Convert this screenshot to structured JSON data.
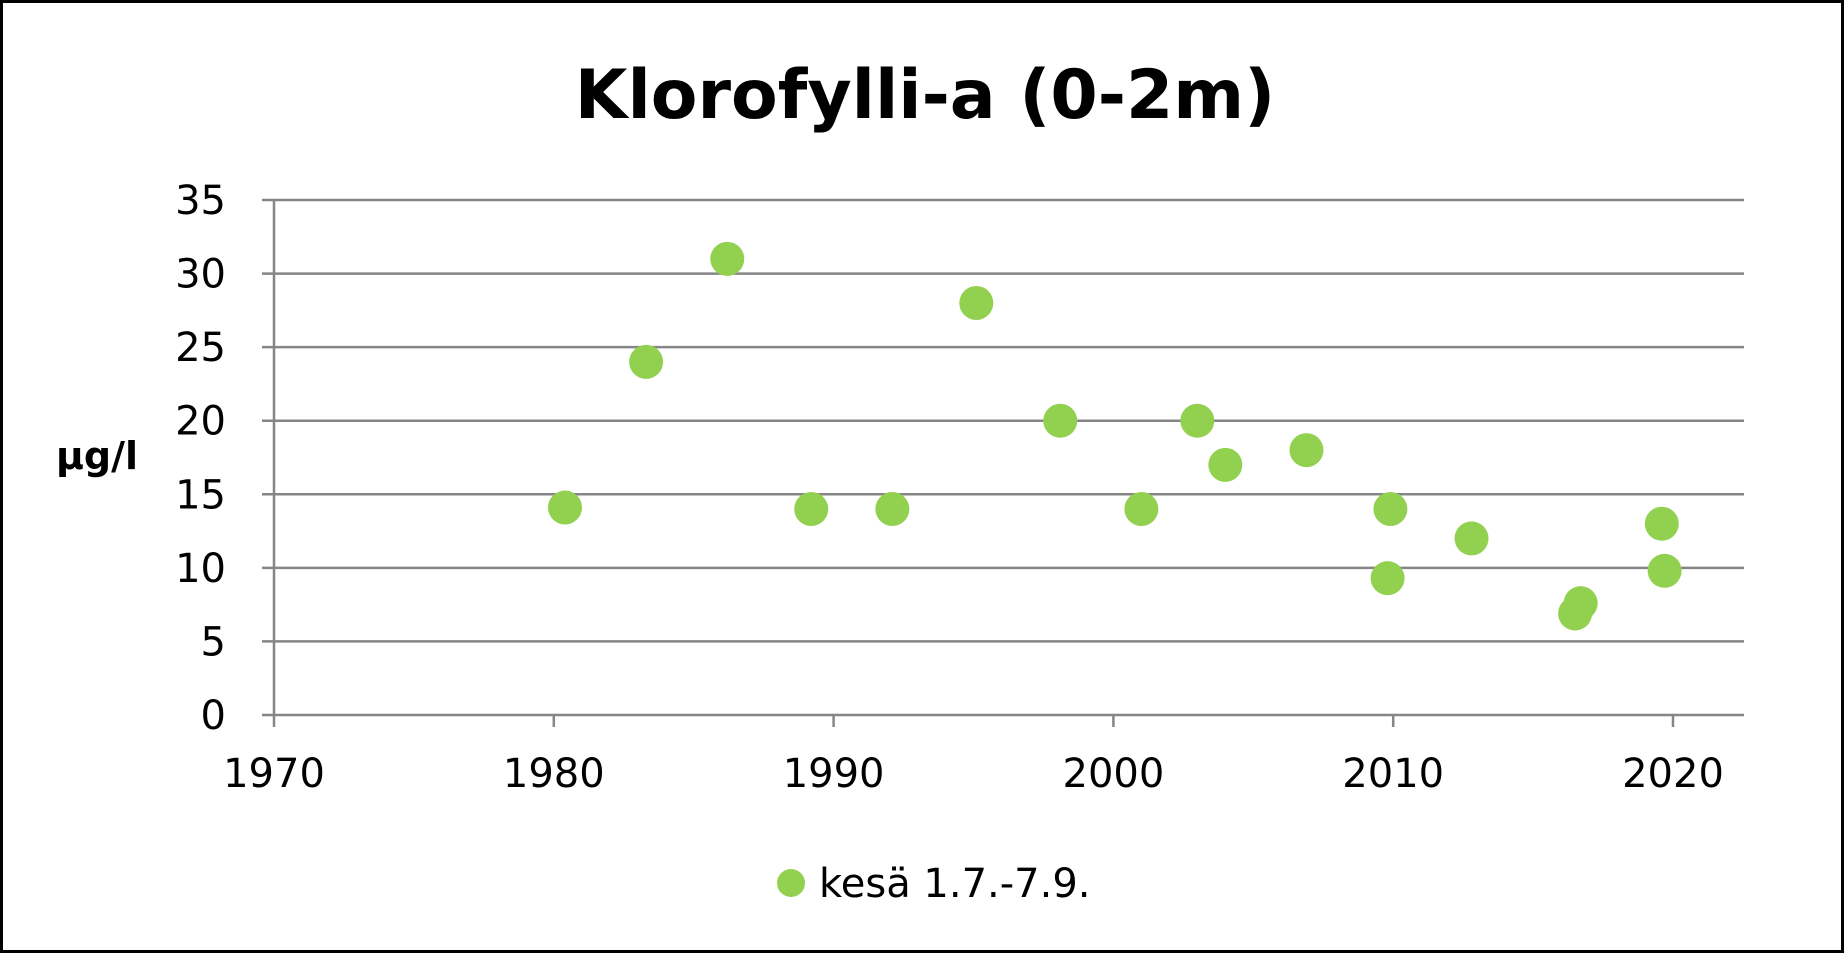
{
  "chart_data": {
    "type": "scatter",
    "title": "Klorofylli-a (0-2m)",
    "xlabel": "",
    "ylabel": "µg/l",
    "xlim": [
      1970,
      2023
    ],
    "ylim": [
      0,
      35
    ],
    "xticks": [
      1970,
      1980,
      1990,
      2000,
      2010,
      2020
    ],
    "yticks": [
      0,
      5,
      10,
      15,
      20,
      25,
      30,
      35
    ],
    "grid": "horizontal",
    "legend_position": "bottom",
    "colors": {
      "series": "#92d050",
      "grid": "#868686",
      "axis": "#868686"
    },
    "series": [
      {
        "name": "kesä 1.7.-7.9.",
        "points": [
          {
            "x": 1980.4,
            "y": 14.1
          },
          {
            "x": 1983.3,
            "y": 24.0
          },
          {
            "x": 1986.2,
            "y": 31.0
          },
          {
            "x": 1989.2,
            "y": 14.0
          },
          {
            "x": 1992.1,
            "y": 14.0
          },
          {
            "x": 1995.1,
            "y": 28.0
          },
          {
            "x": 1998.1,
            "y": 20.0
          },
          {
            "x": 2001.0,
            "y": 14.0
          },
          {
            "x": 2003.0,
            "y": 20.0
          },
          {
            "x": 2004.0,
            "y": 17.0
          },
          {
            "x": 2006.9,
            "y": 18.0
          },
          {
            "x": 2009.9,
            "y": 14.0
          },
          {
            "x": 2009.8,
            "y": 9.3
          },
          {
            "x": 2012.8,
            "y": 12.0
          },
          {
            "x": 2016.5,
            "y": 6.9
          },
          {
            "x": 2016.7,
            "y": 7.6
          },
          {
            "x": 2019.6,
            "y": 13.0
          },
          {
            "x": 2019.7,
            "y": 9.8
          }
        ]
      }
    ]
  }
}
